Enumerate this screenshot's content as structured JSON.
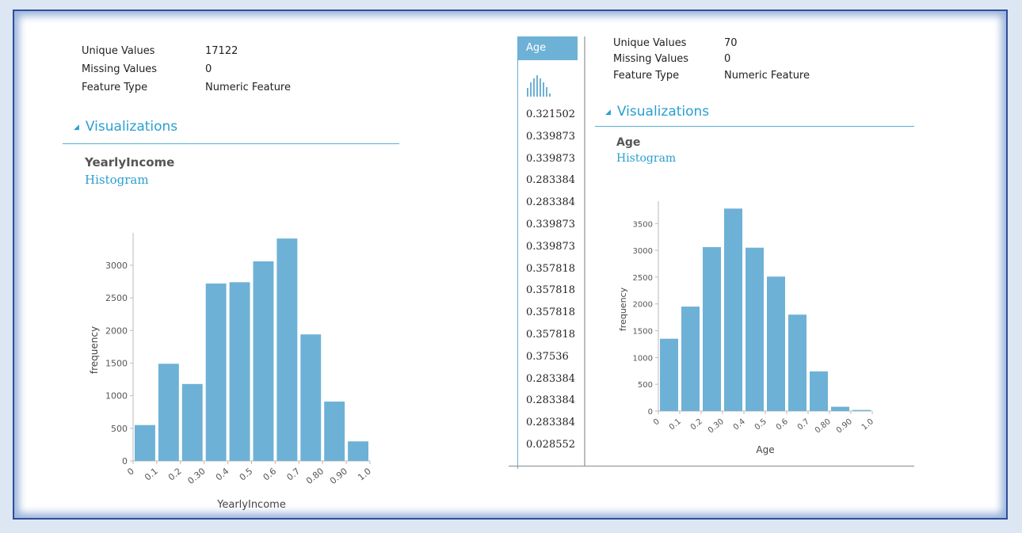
{
  "left": {
    "stats": [
      {
        "label": "Unique Values",
        "value": "17122"
      },
      {
        "label": "Missing Values",
        "value": "0"
      },
      {
        "label": "Feature Type",
        "value": "Numeric Feature"
      }
    ],
    "viz_title": "Visualizations",
    "chart_title": "YearlyIncome",
    "chart_subtitle": "Histogram"
  },
  "right": {
    "stats": [
      {
        "label": "Unique Values",
        "value": "70"
      },
      {
        "label": "Missing Values",
        "value": "0"
      },
      {
        "label": "Feature Type",
        "value": "Numeric Feature"
      }
    ],
    "viz_title": "Visualizations",
    "chart_title": "Age",
    "chart_subtitle": "Histogram"
  },
  "column": {
    "header": "Age",
    "values": [
      "0.321502",
      "0.339873",
      "0.339873",
      "0.283384",
      "0.283384",
      "0.339873",
      "0.339873",
      "0.357818",
      "0.357818",
      "0.357818",
      "0.357818",
      "0.37536",
      "0.283384",
      "0.283384",
      "0.283384",
      "0.028552"
    ]
  },
  "colors": {
    "bar": "#6eb1d6",
    "accent": "#2a9fd0"
  },
  "chart_data": [
    {
      "type": "bar",
      "title": "",
      "xlabel": "YearlyIncome",
      "ylabel": "frequency",
      "x_ticks": [
        "0",
        "0.1",
        "0.2",
        "0.30",
        "0.4",
        "0.5",
        "0.6",
        "0.7",
        "0.80",
        "0.90",
        "1.0"
      ],
      "values": [
        550,
        1490,
        1180,
        2720,
        2740,
        3060,
        3410,
        1940,
        910,
        300
      ],
      "y_ticks": [
        0,
        500,
        1000,
        1500,
        2000,
        2500,
        3000
      ],
      "ylim": [
        0,
        3400
      ]
    },
    {
      "type": "bar",
      "title": "",
      "xlabel": "Age",
      "ylabel": "frequency",
      "x_ticks": [
        "0",
        "0.1",
        "0.2",
        "0.30",
        "0.4",
        "0.5",
        "0.6",
        "0.7",
        "0.80",
        "0.90",
        "1.0"
      ],
      "values": [
        1350,
        1950,
        3060,
        3780,
        3050,
        2510,
        1800,
        740,
        80,
        20
      ],
      "y_ticks": [
        0,
        500,
        1000,
        1500,
        2000,
        2500,
        3000,
        3500
      ],
      "ylim": [
        0,
        3800
      ]
    }
  ]
}
